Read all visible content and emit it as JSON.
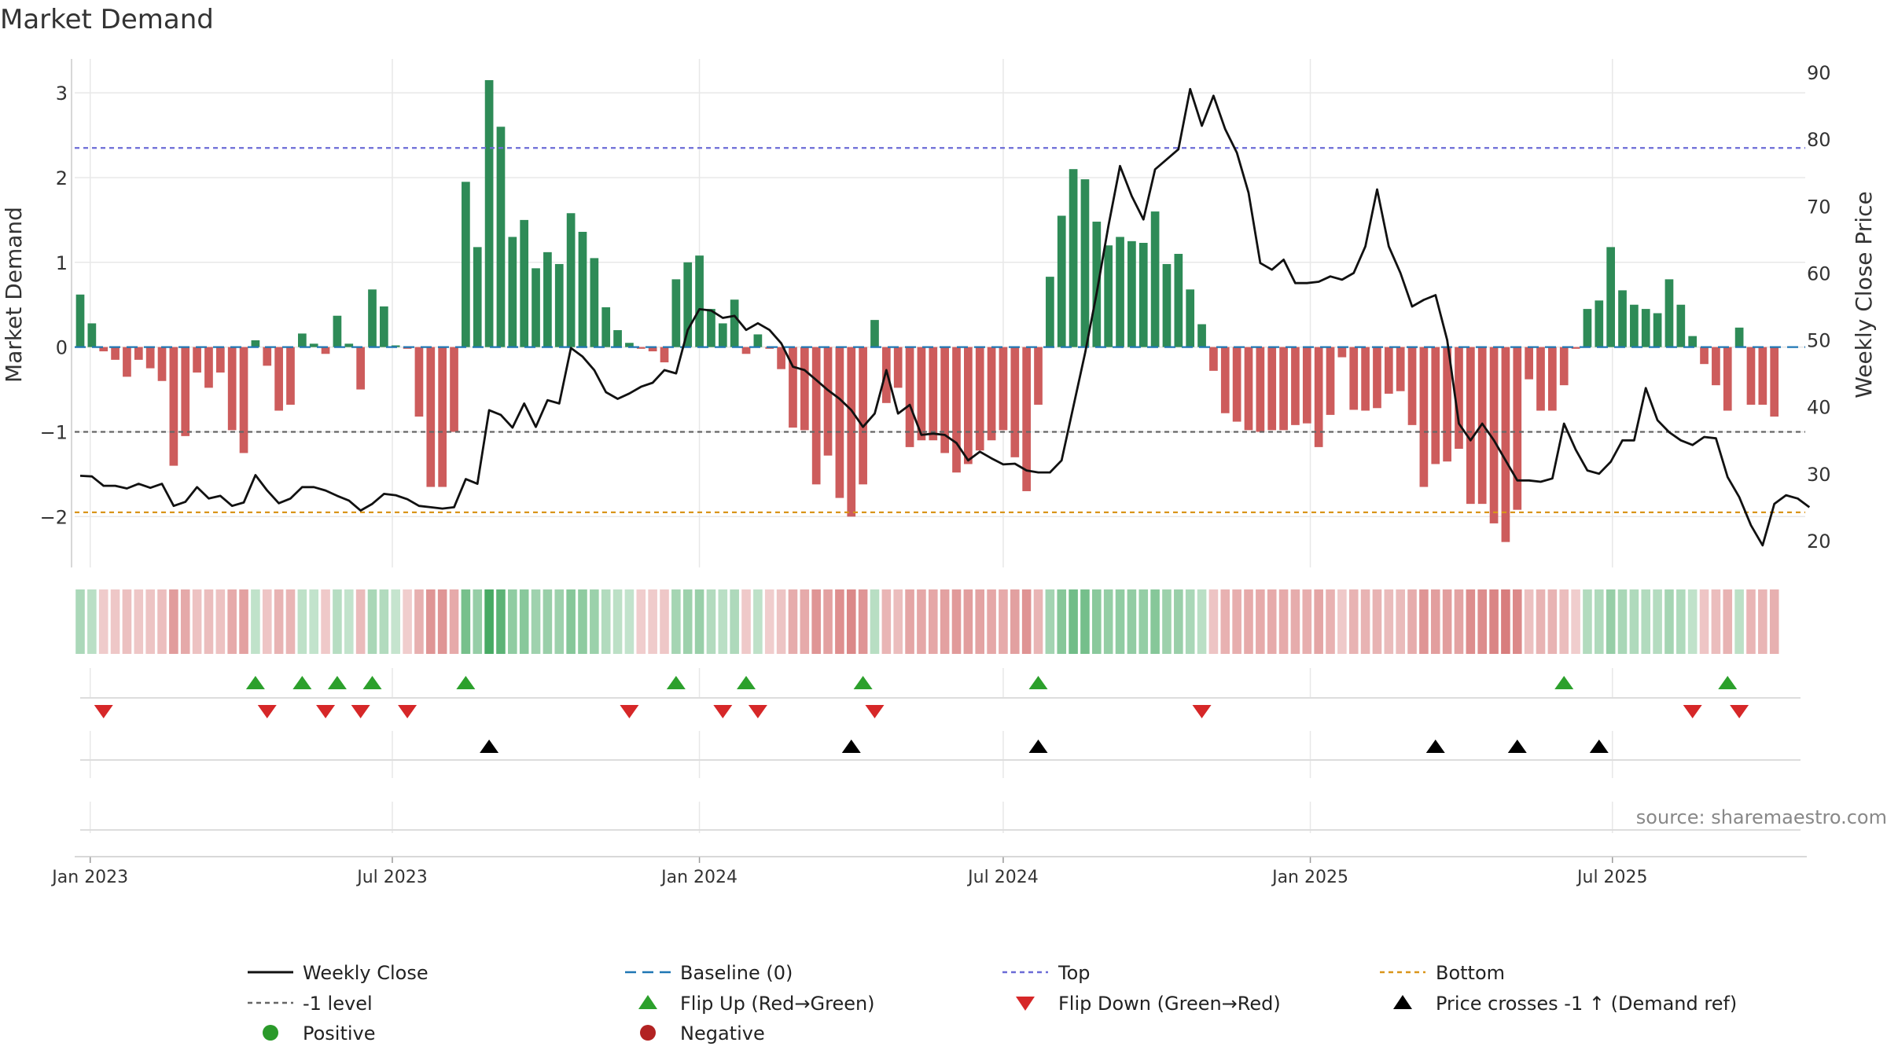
{
  "chart_data": {
    "type": "bar",
    "title": "Market Demand",
    "ylabel_left": "Market Demand",
    "ylabel_right": "Weekly Close Price",
    "source": "source: sharemaestro.com",
    "x_start": "2022-12-26",
    "week_step_days": 7,
    "x_ticks": [
      {
        "label": "Jan 2023",
        "date": "2023-01-01"
      },
      {
        "label": "Jul 2023",
        "date": "2023-07-01"
      },
      {
        "label": "Jan 2024",
        "date": "2024-01-01"
      },
      {
        "label": "Jul 2024",
        "date": "2024-07-01"
      },
      {
        "label": "Jan 2025",
        "date": "2025-01-01"
      },
      {
        "label": "Jul 2025",
        "date": "2025-07-01"
      }
    ],
    "y_left": {
      "range": [
        -2.6,
        3.4
      ],
      "ticks": [
        -2,
        -1,
        0,
        1,
        2,
        3
      ],
      "tick_labels": [
        "−2",
        "−1",
        "0",
        "1",
        "2",
        "3"
      ]
    },
    "y_right": {
      "range": [
        16.0,
        92.0
      ],
      "ticks": [
        20,
        30,
        40,
        50,
        60,
        70,
        80,
        90
      ],
      "tick_labels": [
        "20",
        "30",
        "40",
        "50",
        "60",
        "70",
        "80",
        "90"
      ]
    },
    "reference_lines": [
      {
        "name": "Top",
        "value": 2.35,
        "color": "#6b6bd6",
        "dash": "6,5"
      },
      {
        "name": "Bottom",
        "value": -1.95,
        "color": "#d9951a",
        "dash": "6,5"
      },
      {
        "name": "-1 level",
        "value": -1.0,
        "color": "#666666",
        "dash": "6,5"
      },
      {
        "name": "Baseline (0)",
        "value": 0.0,
        "color": "#1f77b4",
        "dash": "14,8"
      }
    ],
    "demand": [
      0.62,
      0.28,
      -0.05,
      -0.15,
      -0.35,
      -0.15,
      -0.25,
      -0.4,
      -1.4,
      -1.05,
      -0.3,
      -0.48,
      -0.3,
      -0.98,
      -1.25,
      0.08,
      -0.22,
      -0.75,
      -0.68,
      0.16,
      0.04,
      -0.08,
      0.37,
      0.04,
      -0.5,
      0.68,
      0.48,
      0.02,
      -0.02,
      -0.82,
      -1.65,
      -1.65,
      -1.0,
      1.95,
      1.18,
      3.15,
      2.6,
      1.3,
      1.5,
      0.93,
      1.12,
      0.98,
      1.58,
      1.36,
      1.05,
      0.47,
      0.2,
      0.05,
      -0.02,
      -0.05,
      -0.18,
      0.8,
      1.0,
      1.08,
      0.45,
      0.28,
      0.56,
      -0.08,
      0.15,
      -0.02,
      -0.26,
      -0.95,
      -0.98,
      -1.62,
      -1.28,
      -1.78,
      -2.0,
      -1.62,
      0.32,
      -0.66,
      -0.48,
      -1.18,
      -1.1,
      -1.1,
      -1.25,
      -1.48,
      -1.38,
      -1.22,
      -1.1,
      -0.98,
      -1.3,
      -1.7,
      -0.68,
      0.83,
      1.55,
      2.1,
      1.98,
      1.48,
      1.2,
      1.3,
      1.25,
      1.23,
      1.6,
      0.98,
      1.1,
      0.68,
      0.27,
      -0.28,
      -0.78,
      -0.88,
      -0.98,
      -1.0,
      -0.98,
      -0.98,
      -0.92,
      -0.9,
      -1.18,
      -0.8,
      -0.12,
      -0.74,
      -0.75,
      -0.72,
      -0.55,
      -0.52,
      -0.92,
      -1.65,
      -1.38,
      -1.35,
      -1.2,
      -1.85,
      -1.85,
      -2.08,
      -2.3,
      -1.92,
      -0.38,
      -0.75,
      -0.75,
      -0.45,
      -0.02,
      0.45,
      0.55,
      1.18,
      0.67,
      0.5,
      0.45,
      0.4,
      0.8,
      0.5,
      0.13,
      -0.2,
      -0.45,
      -0.75,
      0.23,
      -0.68,
      -0.68,
      -0.82
    ],
    "close": [
      29.7,
      29.6,
      28.2,
      28.2,
      27.8,
      28.5,
      27.9,
      28.5,
      25.2,
      25.8,
      28.0,
      26.3,
      26.7,
      25.2,
      25.7,
      29.8,
      27.5,
      25.6,
      26.3,
      28.0,
      28.0,
      27.5,
      26.7,
      26.0,
      24.5,
      25.5,
      27.0,
      26.8,
      26.2,
      25.2,
      25.0,
      24.8,
      25.0,
      29.2,
      28.5,
      39.5,
      38.8,
      36.9,
      40.5,
      37.0,
      41.0,
      40.5,
      48.8,
      47.5,
      45.5,
      42.2,
      41.2,
      42.0,
      43.0,
      43.6,
      45.5,
      45.0,
      51.5,
      54.6,
      54.4,
      53.3,
      53.6,
      51.5,
      52.5,
      51.5,
      49.5,
      46.0,
      45.5,
      44.0,
      42.5,
      41.2,
      39.5,
      37.0,
      39.0,
      45.5,
      39.0,
      40.3,
      35.8,
      36.0,
      35.8,
      34.6,
      32.0,
      33.3,
      32.3,
      31.4,
      31.5,
      30.5,
      30.2,
      30.2,
      32.0,
      40.0,
      48.0,
      57.0,
      67.0,
      76.0,
      71.5,
      68.0,
      75.5,
      77.0,
      78.5,
      87.5,
      82.0,
      86.5,
      81.5,
      78.0,
      72.0,
      61.5,
      60.5,
      62.0,
      58.5,
      58.5,
      58.7,
      59.5,
      59.0,
      60.0,
      64.0,
      72.5,
      64.0,
      60.0,
      55.0,
      56.0,
      56.7,
      50.0,
      37.5,
      35.0,
      37.5,
      35.0,
      32.0,
      29.0,
      29.0,
      28.8,
      29.3,
      37.5,
      33.6,
      30.5,
      30.0,
      31.8,
      35.0,
      35.0,
      42.8,
      38.0,
      36.2,
      35.0,
      34.3,
      35.5,
      35.3,
      29.5,
      26.5,
      22.3,
      19.3,
      25.5,
      26.8,
      26.3,
      25.0
    ]
  },
  "flip_up_weeks": [
    15,
    19,
    22,
    25,
    33,
    51,
    57,
    67,
    82,
    127,
    141
  ],
  "flip_down_weeks": [
    2,
    16,
    21,
    24,
    28,
    47,
    55,
    58,
    68,
    96,
    138,
    142
  ],
  "price_cross_weeks": [
    35,
    66,
    82,
    116,
    123,
    130
  ],
  "legend": {
    "weekly_close": "Weekly Close",
    "baseline": "Baseline (0)",
    "top": "Top",
    "bottom": "Bottom",
    "minus1": "-1 level",
    "flip_up": "Flip Up (Red→Green)",
    "flip_down": "Flip Down (Green→Red)",
    "price_cross": "Price crosses -1 ↑ (Demand ref)",
    "positive": "Positive",
    "negative": "Negative"
  },
  "colors": {
    "positive": "#2e8b57",
    "negative": "#cd5c5c",
    "close_line": "#111111",
    "flip_up": "#2ca02c",
    "flip_down": "#d62728",
    "price_cross": "#000000",
    "positive_dot": "#2a9a2a",
    "negative_dot": "#b22222",
    "grid": "#e8e8e8"
  }
}
